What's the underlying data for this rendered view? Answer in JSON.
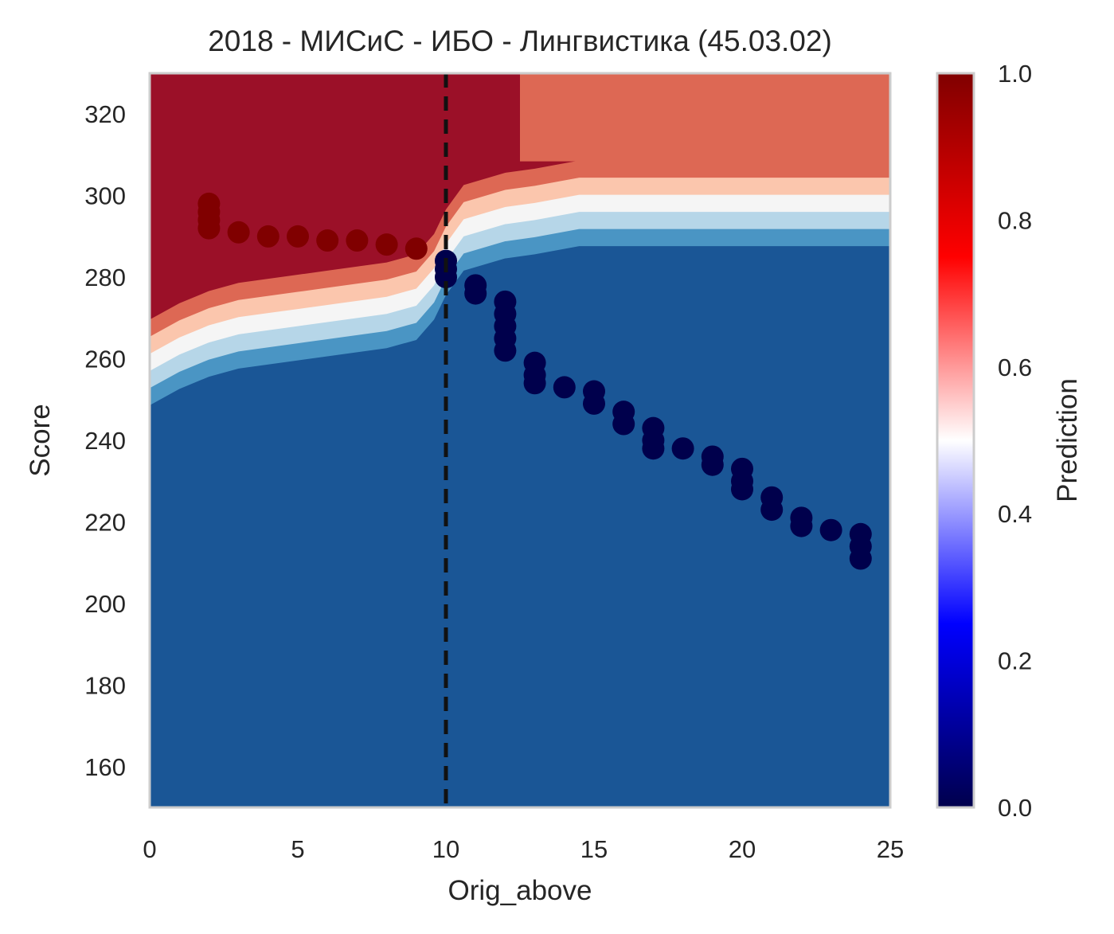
{
  "chart_data": {
    "type": "heatmap",
    "title": "2018 - МИСиС - ИБО - Лингвистика (45.03.02)",
    "xlabel": "Orig_above",
    "ylabel": "Score",
    "xlim": [
      0,
      25
    ],
    "ylim": [
      150,
      330
    ],
    "x_ticks": [
      0,
      5,
      10,
      15,
      20,
      25
    ],
    "y_ticks": [
      160,
      180,
      200,
      220,
      240,
      260,
      280,
      300,
      320
    ],
    "grid": false,
    "vline": {
      "x": 10,
      "style": "dashed",
      "color": "#111111"
    },
    "colorbar": {
      "label": "Prediction",
      "range": [
        0,
        1
      ],
      "ticks": [
        0.0,
        0.2,
        0.4,
        0.6,
        0.8,
        1.0
      ],
      "tick_labels": [
        "0.0",
        "0.2",
        "0.4",
        "0.6",
        "0.8",
        "1.0"
      ],
      "colormap": "seismic",
      "stops": [
        "#00004c",
        "#0000ff",
        "#ffffff",
        "#ff0000",
        "#800000"
      ]
    },
    "contour_levels": [
      {
        "level": 0.1,
        "color": "#1a5696"
      },
      {
        "level": 0.2,
        "color": "#4a95c4"
      },
      {
        "level": 0.35,
        "color": "#b6d6e8"
      },
      {
        "level": 0.5,
        "color": "#f5f5f5"
      },
      {
        "level": 0.65,
        "color": "#fbc6ad"
      },
      {
        "level": 0.8,
        "color": "#dd6854"
      },
      {
        "level": 0.95,
        "color": "#9b1028"
      }
    ],
    "boundary": [
      {
        "x": 0,
        "y": 257
      },
      {
        "x": 1,
        "y": 261
      },
      {
        "x": 2,
        "y": 264
      },
      {
        "x": 3,
        "y": 266
      },
      {
        "x": 4,
        "y": 267
      },
      {
        "x": 5,
        "y": 268
      },
      {
        "x": 6,
        "y": 269
      },
      {
        "x": 7,
        "y": 270
      },
      {
        "x": 8,
        "y": 271
      },
      {
        "x": 9,
        "y": 273
      },
      {
        "x": 9.6,
        "y": 278
      },
      {
        "x": 10,
        "y": 284
      },
      {
        "x": 10.6,
        "y": 290
      },
      {
        "x": 12,
        "y": 293
      },
      {
        "x": 13,
        "y": 294
      },
      {
        "x": 14.5,
        "y": 296
      },
      {
        "x": 25,
        "y": 296
      }
    ],
    "top_right_region": {
      "x_from": 12.5,
      "y_from": 300,
      "value": 0.8
    },
    "series": [
      {
        "class": "1",
        "color": "#800000",
        "points": [
          [
            2,
            298
          ],
          [
            2,
            296
          ],
          [
            2,
            294
          ],
          [
            2,
            292
          ],
          [
            3,
            291
          ],
          [
            4,
            290
          ],
          [
            5,
            290
          ],
          [
            6,
            289
          ],
          [
            7,
            289
          ],
          [
            8,
            288
          ],
          [
            9,
            287
          ]
        ]
      },
      {
        "class": "0",
        "color": "#00004c",
        "points": [
          [
            10,
            284
          ],
          [
            10,
            282
          ],
          [
            10,
            280
          ],
          [
            11,
            278
          ],
          [
            11,
            276
          ],
          [
            12,
            274
          ],
          [
            12,
            271
          ],
          [
            12,
            268
          ],
          [
            12,
            265
          ],
          [
            12,
            262
          ],
          [
            13,
            259
          ],
          [
            13,
            256
          ],
          [
            13,
            254
          ],
          [
            14,
            253
          ],
          [
            15,
            252
          ],
          [
            15,
            249
          ],
          [
            16,
            247
          ],
          [
            16,
            244
          ],
          [
            17,
            243
          ],
          [
            17,
            240
          ],
          [
            17,
            238
          ],
          [
            18,
            238
          ],
          [
            19,
            236
          ],
          [
            19,
            234
          ],
          [
            20,
            233
          ],
          [
            20,
            230
          ],
          [
            20,
            228
          ],
          [
            21,
            226
          ],
          [
            21,
            223
          ],
          [
            22,
            221
          ],
          [
            22,
            219
          ],
          [
            23,
            218
          ],
          [
            24,
            217
          ],
          [
            24,
            214
          ],
          [
            24,
            211
          ]
        ]
      }
    ]
  }
}
